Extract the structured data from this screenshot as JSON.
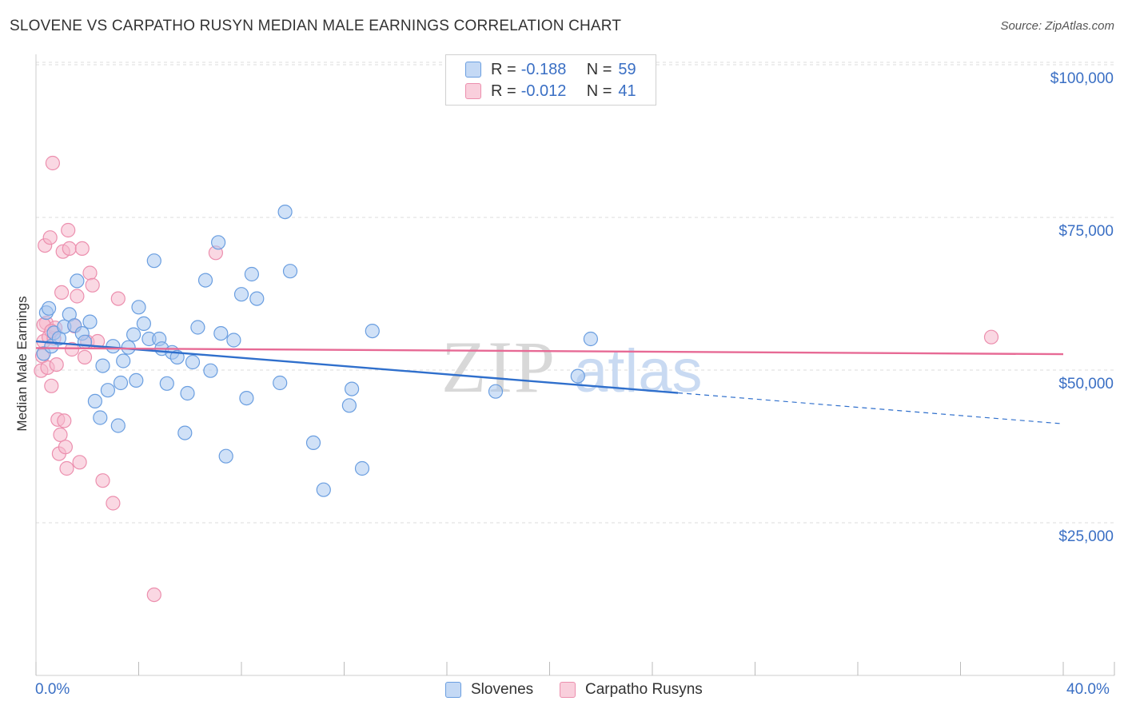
{
  "title": "SLOVENE VS CARPATHO RUSYN MEDIAN MALE EARNINGS CORRELATION CHART",
  "source": "Source: ZipAtlas.com",
  "watermark": {
    "zip": "ZIP",
    "atlas": "atlas"
  },
  "legend": {
    "rows": [
      {
        "r_label": "R =",
        "r_value": "-0.188",
        "n_label": "N =",
        "n_value": "59"
      },
      {
        "r_label": "R =",
        "r_value": "-0.012",
        "n_label": "N =",
        "n_value": "41"
      }
    ]
  },
  "bottom_legend": {
    "series1": "Slovenes",
    "series2": "Carpatho Rusyns"
  },
  "x_tick_labels": {
    "left": "0.0%",
    "right": "40.0%"
  },
  "colors": {
    "blue_fill": "#a9c8f0",
    "blue_stroke": "#6a9ee0",
    "blue_line": "#2f6fcc",
    "pink_fill": "#f6b8cc",
    "pink_stroke": "#ec8fae",
    "pink_line": "#e76a95",
    "grid": "#dddddd",
    "axis_text": "#3a6fc4"
  },
  "chart_data": {
    "type": "scatter",
    "title": "SLOVENE VS CARPATHO RUSYN MEDIAN MALE EARNINGS CORRELATION CHART",
    "xlabel": "",
    "ylabel": "Median Male Earnings",
    "xlim": [
      0,
      40
    ],
    "ylim": [
      3000,
      104000
    ],
    "x_unit": "%",
    "y_ticks": [
      25000,
      50000,
      75000,
      100000
    ],
    "y_tick_labels": [
      "$25,000",
      "$50,000",
      "$75,000",
      "$100,000"
    ],
    "grid": true,
    "legend_position": "top-center",
    "series": [
      {
        "name": "Slovenes",
        "color": "#a9c8f0",
        "trend": {
          "x_start": 0,
          "y_start": 56800,
          "x_solid_end": 25,
          "x_end": 40,
          "y_end": 43300
        },
        "points": [
          [
            0.3,
            54800
          ],
          [
            0.4,
            61500
          ],
          [
            0.5,
            62200
          ],
          [
            0.6,
            56000
          ],
          [
            0.7,
            58200
          ],
          [
            0.9,
            57300
          ],
          [
            1.1,
            59200
          ],
          [
            1.3,
            61200
          ],
          [
            1.5,
            59400
          ],
          [
            1.6,
            66700
          ],
          [
            1.8,
            58100
          ],
          [
            1.9,
            56700
          ],
          [
            2.1,
            60000
          ],
          [
            2.3,
            47000
          ],
          [
            2.5,
            44300
          ],
          [
            2.6,
            52800
          ],
          [
            2.8,
            48800
          ],
          [
            3.0,
            56000
          ],
          [
            3.2,
            43000
          ],
          [
            3.3,
            50000
          ],
          [
            3.4,
            53600
          ],
          [
            3.6,
            55800
          ],
          [
            3.8,
            57900
          ],
          [
            3.9,
            50400
          ],
          [
            4.0,
            62400
          ],
          [
            4.2,
            59700
          ],
          [
            4.4,
            57200
          ],
          [
            4.6,
            70000
          ],
          [
            4.8,
            57200
          ],
          [
            4.9,
            55600
          ],
          [
            5.1,
            49900
          ],
          [
            5.3,
            55000
          ],
          [
            5.5,
            54200
          ],
          [
            5.8,
            41800
          ],
          [
            5.9,
            48300
          ],
          [
            6.1,
            53400
          ],
          [
            6.3,
            59100
          ],
          [
            6.6,
            66800
          ],
          [
            6.8,
            52000
          ],
          [
            7.1,
            73000
          ],
          [
            7.2,
            58100
          ],
          [
            7.4,
            38000
          ],
          [
            7.7,
            57000
          ],
          [
            8.0,
            64500
          ],
          [
            8.2,
            47500
          ],
          [
            8.4,
            67800
          ],
          [
            8.6,
            63800
          ],
          [
            9.5,
            50000
          ],
          [
            9.7,
            78000
          ],
          [
            9.9,
            68300
          ],
          [
            10.8,
            40200
          ],
          [
            11.2,
            32500
          ],
          [
            12.2,
            46300
          ],
          [
            12.3,
            49000
          ],
          [
            12.7,
            36000
          ],
          [
            13.1,
            58500
          ],
          [
            17.9,
            48600
          ],
          [
            21.1,
            51100
          ],
          [
            21.6,
            57200
          ]
        ]
      },
      {
        "name": "Carpatho Rusyns",
        "color": "#f6b8cc",
        "trend": {
          "x_start": 0,
          "y_start": 55700,
          "x_end": 40,
          "y_end": 54700
        },
        "points": [
          [
            0.2,
            52000
          ],
          [
            0.25,
            54400
          ],
          [
            0.3,
            56800
          ],
          [
            0.35,
            72500
          ],
          [
            0.4,
            59800
          ],
          [
            0.45,
            52500
          ],
          [
            0.5,
            57500
          ],
          [
            0.55,
            73800
          ],
          [
            0.6,
            49500
          ],
          [
            0.65,
            86000
          ],
          [
            0.7,
            57300
          ],
          [
            0.75,
            59000
          ],
          [
            0.8,
            53000
          ],
          [
            0.85,
            44000
          ],
          [
            0.9,
            38400
          ],
          [
            0.95,
            41500
          ],
          [
            1.0,
            64800
          ],
          [
            1.05,
            71500
          ],
          [
            1.1,
            43800
          ],
          [
            1.15,
            39500
          ],
          [
            1.2,
            36000
          ],
          [
            1.25,
            75000
          ],
          [
            1.3,
            72000
          ],
          [
            1.4,
            55500
          ],
          [
            1.5,
            59300
          ],
          [
            1.6,
            64200
          ],
          [
            1.7,
            37000
          ],
          [
            1.8,
            72000
          ],
          [
            1.9,
            54200
          ],
          [
            2.0,
            56700
          ],
          [
            2.1,
            68000
          ],
          [
            2.2,
            66000
          ],
          [
            2.4,
            56800
          ],
          [
            2.6,
            34000
          ],
          [
            3.0,
            30300
          ],
          [
            3.2,
            63800
          ],
          [
            4.6,
            15300
          ],
          [
            7.0,
            71300
          ],
          [
            37.2,
            57500
          ],
          [
            0.3,
            59500
          ],
          [
            0.6,
            58500
          ]
        ]
      }
    ]
  }
}
